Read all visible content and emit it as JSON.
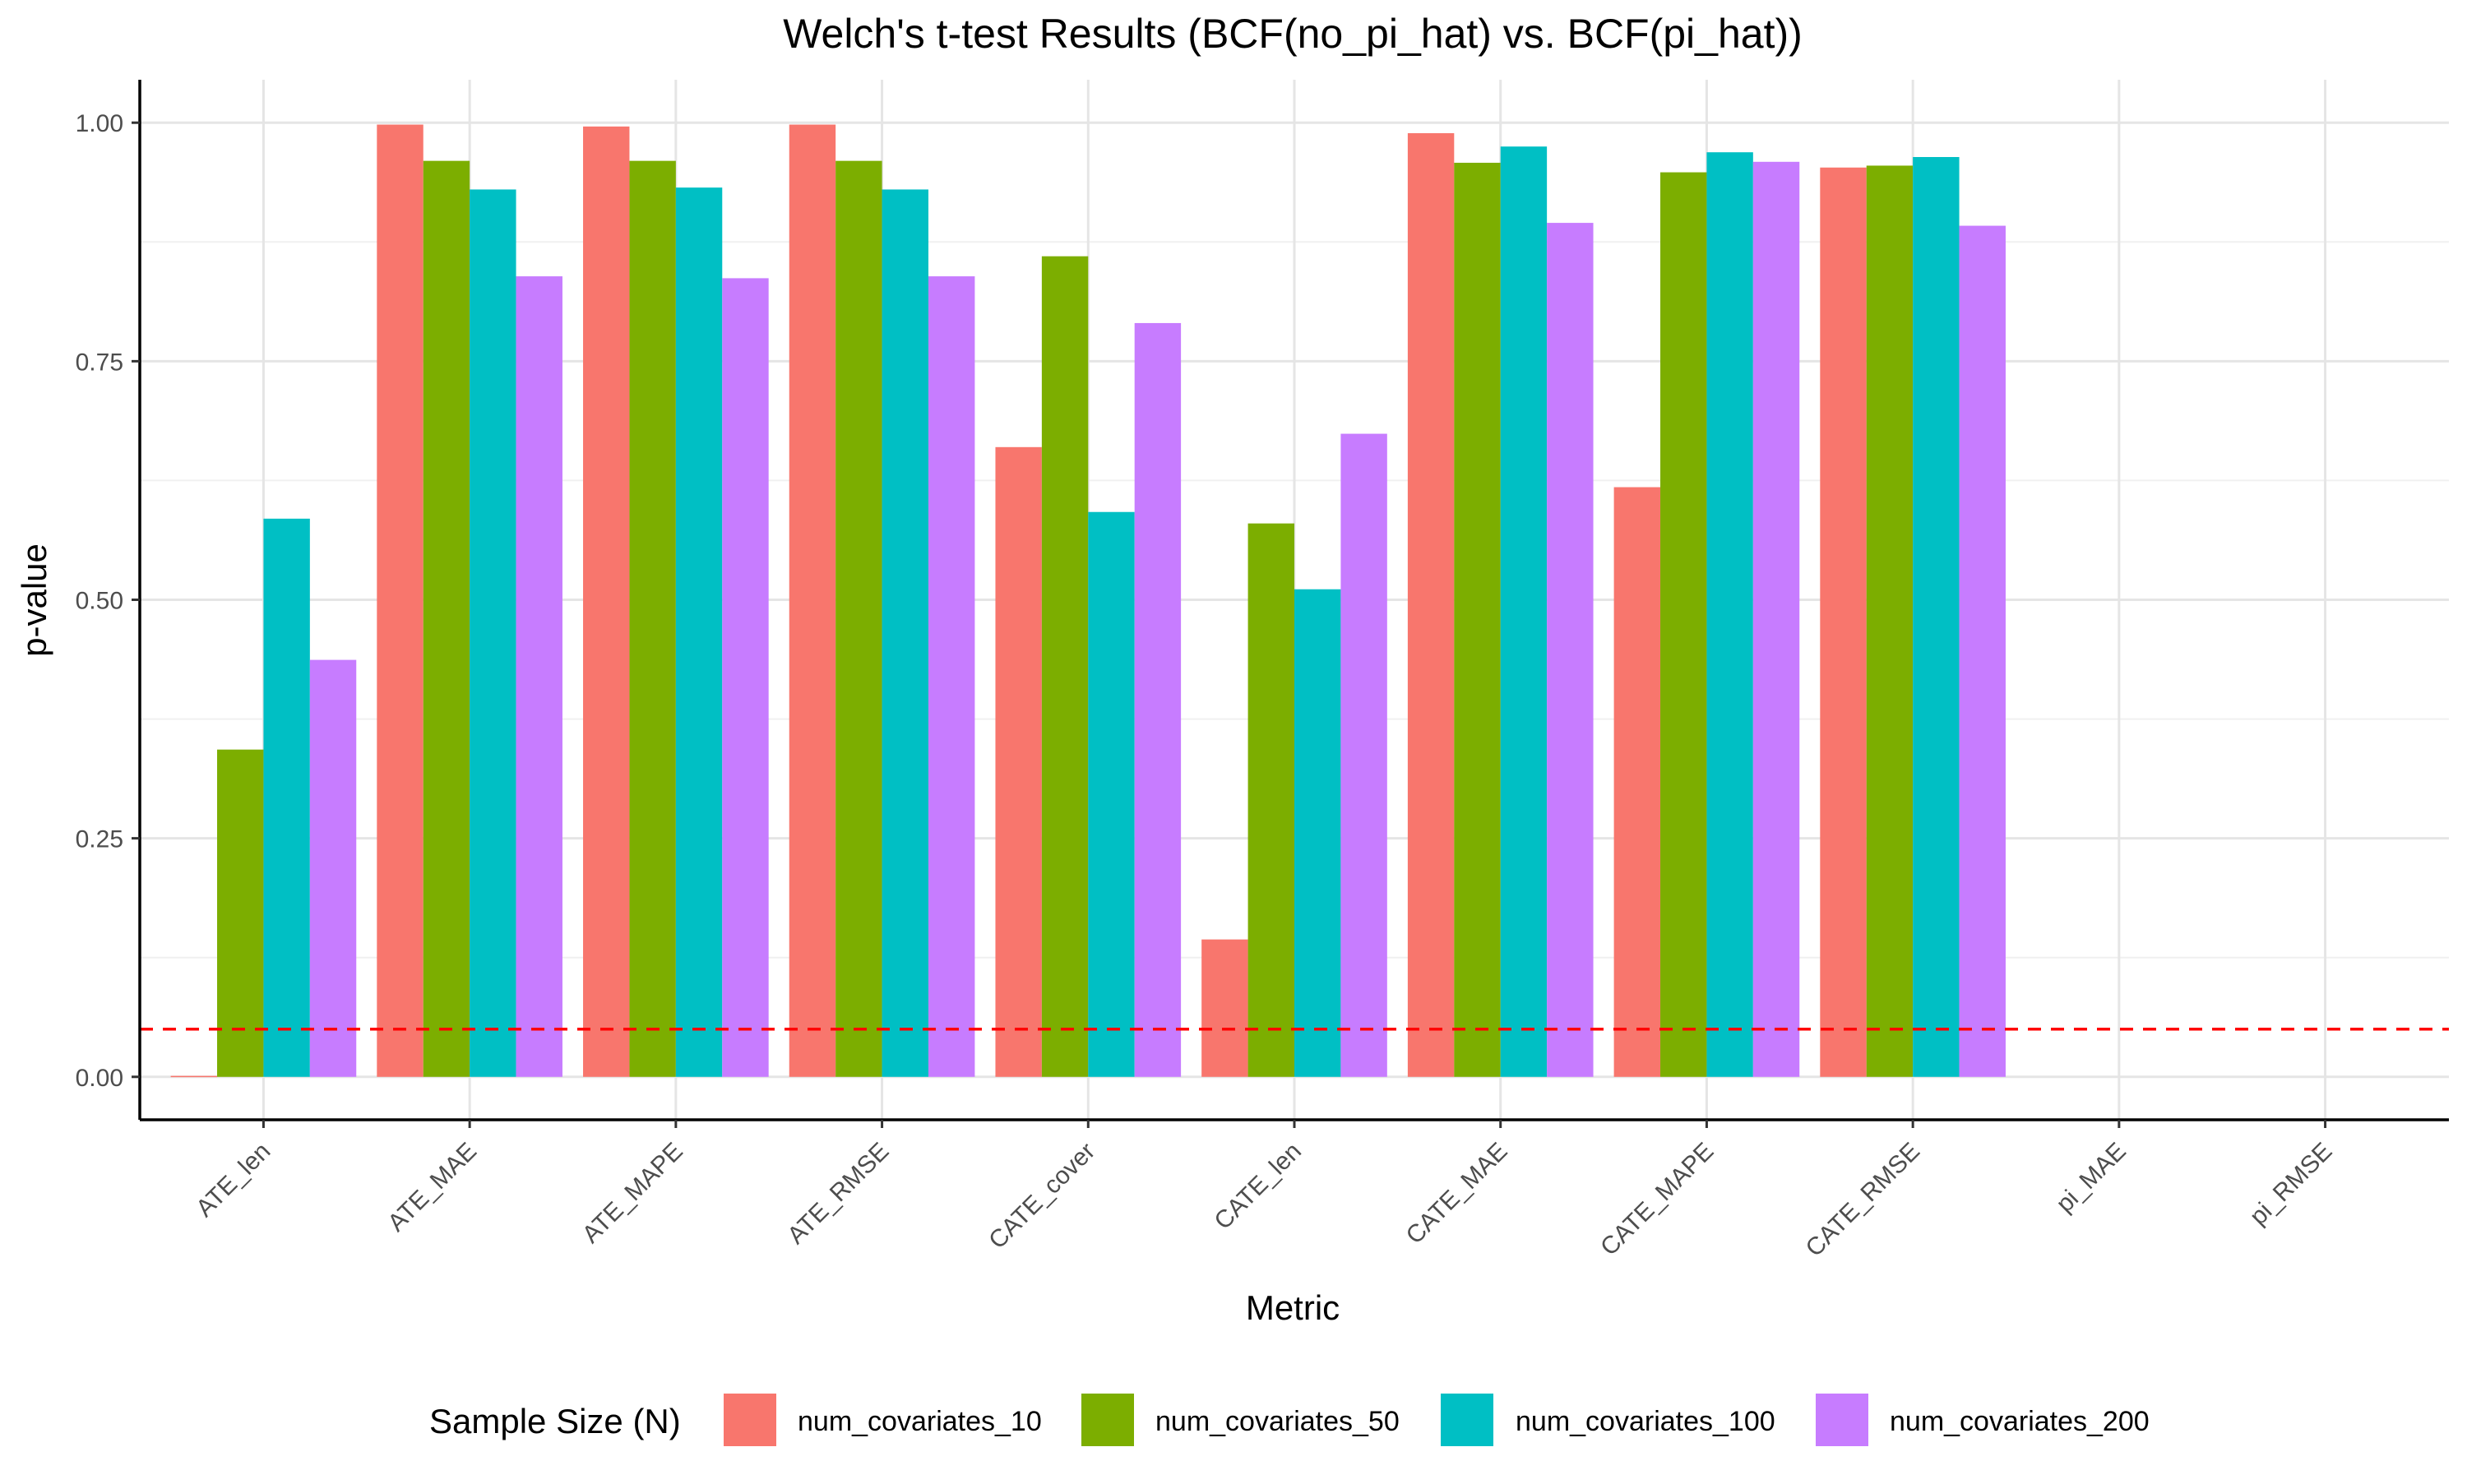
{
  "chart_data": {
    "type": "bar",
    "title": "Welch's t-test Results (BCF(no_pi_hat) vs. BCF(pi_hat))",
    "xlabel": "Metric",
    "ylabel": "p-value",
    "ylim": [
      -0.045,
      1.045
    ],
    "yticks": [
      0.0,
      0.25,
      0.5,
      0.75,
      1.0
    ],
    "ytick_labels": [
      "0.00",
      "0.25",
      "0.50",
      "0.75",
      "1.00"
    ],
    "grid": true,
    "legend_position": "bottom",
    "legend_title": "Sample Size (N)",
    "reference_line": {
      "y": 0.05,
      "color": "#ff0000",
      "style": "dashed"
    },
    "categories": [
      "ATE_len",
      "ATE_MAE",
      "ATE_MAPE",
      "ATE_RMSE",
      "CATE_cover",
      "CATE_len",
      "CATE_MAE",
      "CATE_MAPE",
      "CATE_RMSE",
      "pi_MAE",
      "pi_RMSE"
    ],
    "series": [
      {
        "name": "num_covariates_10",
        "color": "#F8766D",
        "values": [
          0.001,
          0.998,
          0.996,
          0.998,
          0.66,
          0.144,
          0.989,
          0.618,
          0.953,
          null,
          null
        ]
      },
      {
        "name": "num_covariates_50",
        "color": "#7CAE00",
        "values": [
          0.343,
          0.96,
          0.96,
          0.96,
          0.86,
          0.58,
          0.958,
          0.948,
          0.955,
          null,
          null
        ]
      },
      {
        "name": "num_covariates_100",
        "color": "#00BFC4",
        "values": [
          0.585,
          0.93,
          0.932,
          0.93,
          0.592,
          0.511,
          0.975,
          0.969,
          0.964,
          null,
          null
        ]
      },
      {
        "name": "num_covariates_200",
        "color": "#C77CFF",
        "values": [
          0.437,
          0.839,
          0.837,
          0.839,
          0.79,
          0.674,
          0.895,
          0.959,
          0.892,
          null,
          null
        ]
      }
    ]
  }
}
